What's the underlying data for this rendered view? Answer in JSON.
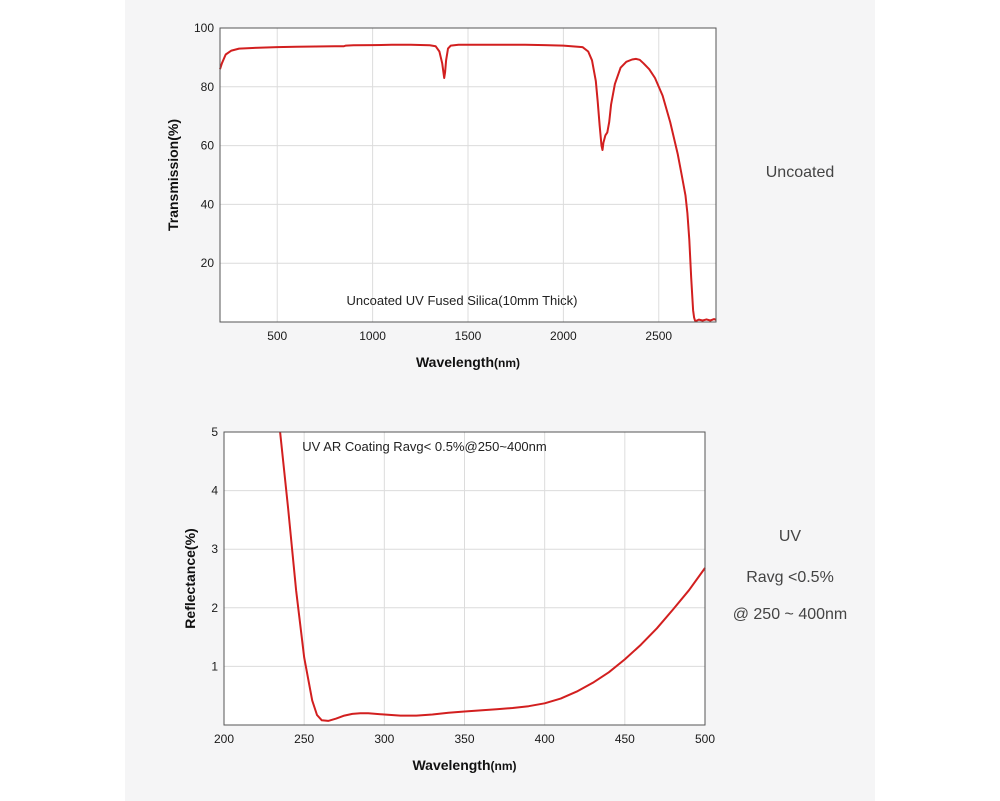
{
  "side_labels": {
    "top": "Uncoated",
    "bottom_line1": "UV",
    "bottom_line2": "Ravg <0.5%",
    "bottom_line3": "@ 250 ~ 400nm"
  },
  "colors": {
    "curve": "#d21f1f",
    "grid": "#dcdcdc",
    "frame": "#555555",
    "panel": "#f5f5f6"
  },
  "chart_data": [
    {
      "type": "line",
      "annotation": "Uncoated UV Fused Silica(10mm Thick)",
      "xlabel": "Wavelength",
      "xlabel_unit": "(nm)",
      "ylabel": "Transmission(%)",
      "xlim": [
        200,
        2800
      ],
      "ylim": [
        0,
        100
      ],
      "xticks": [
        500,
        1000,
        1500,
        2000,
        2500
      ],
      "yticks": [
        20,
        40,
        60,
        80,
        100
      ],
      "grid": true,
      "series": [
        {
          "x": [
            200,
            210,
            230,
            260,
            300,
            400,
            500,
            600,
            700,
            800,
            850,
            860,
            900,
            1000,
            1100,
            1200,
            1300,
            1330,
            1350,
            1365,
            1375,
            1380,
            1385,
            1395,
            1410,
            1450,
            1500,
            1600,
            1700,
            1800,
            1900,
            2000,
            2100,
            2130,
            2150,
            2170,
            2180,
            2190,
            2200,
            2205,
            2210,
            2220,
            2230,
            2240,
            2250,
            2270,
            2300,
            2330,
            2360,
            2380,
            2400,
            2420,
            2450,
            2480,
            2520,
            2560,
            2600,
            2620,
            2640,
            2650,
            2660,
            2670,
            2680,
            2685,
            2690,
            2695,
            2700,
            2710,
            2730,
            2750,
            2770,
            2790,
            2800
          ],
          "y": [
            86,
            88,
            91,
            92.3,
            93,
            93.3,
            93.5,
            93.6,
            93.7,
            93.8,
            93.8,
            94,
            94.1,
            94.2,
            94.3,
            94.3,
            94.1,
            93.8,
            92,
            88,
            83,
            85,
            89,
            93,
            94,
            94.3,
            94.3,
            94.3,
            94.3,
            94.3,
            94.2,
            94,
            93.5,
            92,
            89,
            82,
            75,
            67,
            60,
            58.5,
            61,
            63.5,
            64.5,
            68,
            74,
            81,
            86.5,
            88.5,
            89.3,
            89.5,
            89.2,
            88,
            86,
            83,
            77,
            68,
            57,
            50,
            43,
            37,
            28,
            15,
            4,
            1.5,
            0.5,
            0.3,
            0.5,
            0.8,
            0.5,
            0.9,
            0.5,
            1,
            0.7
          ]
        }
      ]
    },
    {
      "type": "line",
      "annotation": "UV AR Coating Ravg< 0.5%@250~400nm",
      "xlabel": "Wavelength",
      "xlabel_unit": "(nm)",
      "ylabel": "Reflectance(%)",
      "xlim": [
        200,
        500
      ],
      "ylim": [
        0,
        5
      ],
      "xticks": [
        200,
        250,
        300,
        350,
        400,
        450,
        500
      ],
      "yticks": [
        1,
        2,
        3,
        4,
        5
      ],
      "grid": true,
      "series": [
        {
          "x": [
            235,
            240,
            245,
            250,
            255,
            258,
            261,
            265,
            270,
            275,
            280,
            285,
            290,
            300,
            310,
            320,
            330,
            340,
            350,
            360,
            370,
            380,
            390,
            400,
            410,
            420,
            430,
            440,
            450,
            460,
            470,
            480,
            490,
            500
          ],
          "y": [
            5.0,
            3.7,
            2.3,
            1.15,
            0.42,
            0.17,
            0.08,
            0.07,
            0.11,
            0.16,
            0.19,
            0.2,
            0.2,
            0.18,
            0.16,
            0.16,
            0.18,
            0.21,
            0.23,
            0.25,
            0.27,
            0.29,
            0.32,
            0.37,
            0.45,
            0.57,
            0.72,
            0.9,
            1.12,
            1.37,
            1.65,
            1.97,
            2.3,
            2.68
          ]
        }
      ]
    }
  ]
}
